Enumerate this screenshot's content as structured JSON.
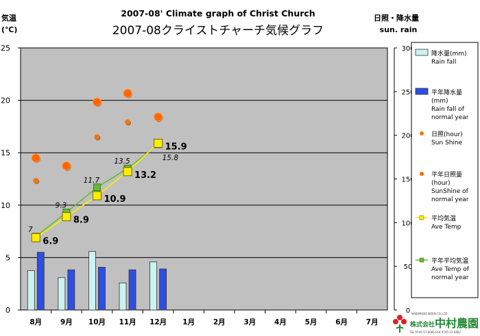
{
  "title_en": "2007-08' Climate graph of Christ Church",
  "title_jp": "2007-08クライストチャーチ気候グラフ",
  "left_axis_label": [
    "気温",
    "(℃)"
  ],
  "right_axis_label": [
    "日照・降水量",
    "sun. rain"
  ],
  "logo": {
    "main": "中村農園",
    "sub": "株式会社",
    "en": "NAKAMURA NOEN CO.,LTD",
    "tel": "TEL 0745-57-0085 FAX 0745-57-0087"
  },
  "chart_data": {
    "type": "bar",
    "categories": [
      "8月",
      "9月",
      "10月",
      "11月",
      "12月",
      "1月",
      "2月",
      "3月",
      "4月",
      "5月",
      "6月",
      "7月"
    ],
    "left_axis": {
      "range": [
        0,
        25
      ],
      "ticks": [
        "0",
        "5",
        "10",
        "15",
        "20",
        "25"
      ]
    },
    "right_axis": {
      "range": [
        0,
        300
      ],
      "ticks": [
        "0",
        "50",
        "100",
        "150",
        "200",
        "250",
        "300"
      ]
    },
    "grid": true,
    "legend_position": "right",
    "series": [
      {
        "key": "rain",
        "name": "降水量(mm)",
        "name_en": "Rain fall",
        "kind": "bar",
        "axis": "right",
        "color": "#CCF2F2",
        "values": [
          45,
          37,
          67,
          31,
          55,
          null,
          null,
          null,
          null,
          null,
          null,
          null
        ]
      },
      {
        "key": "rain_norm",
        "name": "平年降水量(mm)",
        "name_en": "Rain fall of normal year",
        "kind": "bar",
        "axis": "right",
        "color": "#2E4FE0",
        "values": [
          66,
          46,
          49,
          46,
          47,
          null,
          null,
          null,
          null,
          null,
          null,
          null
        ]
      },
      {
        "key": "sun",
        "name": "日照(hour)",
        "name_en": "Sun Shine",
        "kind": "scatter",
        "axis": "right",
        "color": "#EE7711",
        "values": [
          148,
          163,
          198,
          215,
          219,
          null,
          null,
          null,
          null,
          null,
          null,
          null
        ]
      },
      {
        "key": "sun_norm",
        "name": "平年日照量(hour)",
        "name_en": "SunShine of normal year",
        "kind": "scatter",
        "axis": "right",
        "color": "#FF6600",
        "values": [
          174,
          165,
          238,
          248,
          221,
          null,
          null,
          null,
          null,
          null,
          null,
          null
        ]
      },
      {
        "key": "temp",
        "name": "平均気温",
        "name_en": "Ave Temp",
        "kind": "line",
        "axis": "left",
        "color": "#FFEE00",
        "values": [
          6.9,
          8.9,
          10.9,
          13.2,
          15.9,
          null,
          null,
          null,
          null,
          null,
          null,
          null
        ],
        "labels": [
          "6.9",
          "8.9",
          "10.9",
          "13.2",
          "15.9"
        ]
      },
      {
        "key": "temp_norm",
        "name": "平年平均気温",
        "name_en": "Ave Temp of normal year",
        "kind": "line",
        "axis": "left",
        "color": "#66BB33",
        "values": [
          7,
          9.3,
          11.7,
          13.5,
          15.8,
          null,
          null,
          null,
          null,
          null,
          null,
          null
        ],
        "labels": [
          "7",
          "9.3",
          "11.7",
          "13.5",
          "15.8"
        ]
      }
    ]
  }
}
